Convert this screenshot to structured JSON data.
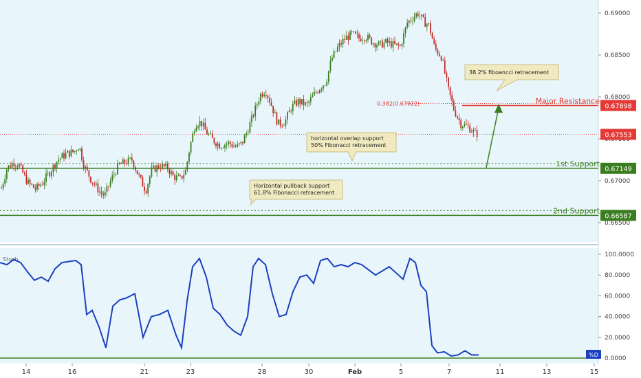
{
  "chart_data": [
    {
      "type": "candlestick",
      "y_ticks": [
        "0.69000",
        "0.68500",
        "0.68000",
        "0.67500",
        "0.67000",
        "0.66500"
      ],
      "ylim": [
        0.6618,
        0.6918
      ],
      "x_ticks": [
        "14",
        "16",
        "21",
        "23",
        "28",
        "30",
        "Feb",
        "5",
        "7",
        "11",
        "13",
        "15"
      ],
      "close_path": [
        [
          0,
          0.6685
        ],
        [
          10,
          0.6715
        ],
        [
          20,
          0.6722
        ],
        [
          28,
          0.6718
        ],
        [
          40,
          0.6698
        ],
        [
          52,
          0.669
        ],
        [
          62,
          0.6698
        ],
        [
          72,
          0.671
        ],
        [
          84,
          0.6725
        ],
        [
          96,
          0.6732
        ],
        [
          108,
          0.6735
        ],
        [
          115,
          0.6742
        ],
        [
          122,
          0.6718
        ],
        [
          132,
          0.6702
        ],
        [
          144,
          0.6688
        ],
        [
          152,
          0.6682
        ],
        [
          162,
          0.6702
        ],
        [
          172,
          0.6718
        ],
        [
          182,
          0.6722
        ],
        [
          192,
          0.6725
        ],
        [
          202,
          0.6705
        ],
        [
          212,
          0.6688
        ],
        [
          220,
          0.6712
        ],
        [
          232,
          0.6718
        ],
        [
          244,
          0.6715
        ],
        [
          252,
          0.6705
        ],
        [
          262,
          0.6702
        ],
        [
          270,
          0.6712
        ],
        [
          276,
          0.674
        ],
        [
          284,
          0.6768
        ],
        [
          292,
          0.677
        ],
        [
          300,
          0.6758
        ],
        [
          310,
          0.6748
        ],
        [
          320,
          0.6742
        ],
        [
          332,
          0.6745
        ],
        [
          344,
          0.674
        ],
        [
          352,
          0.6745
        ],
        [
          360,
          0.676
        ],
        [
          368,
          0.6778
        ],
        [
          378,
          0.6802
        ],
        [
          386,
          0.6808
        ],
        [
          394,
          0.6792
        ],
        [
          404,
          0.6768
        ],
        [
          414,
          0.677
        ],
        [
          424,
          0.6788
        ],
        [
          434,
          0.6795
        ],
        [
          446,
          0.679
        ],
        [
          456,
          0.6802
        ],
        [
          466,
          0.6812
        ],
        [
          474,
          0.6818
        ],
        [
          482,
          0.6845
        ],
        [
          492,
          0.686
        ],
        [
          502,
          0.687
        ],
        [
          512,
          0.6875
        ],
        [
          522,
          0.687
        ],
        [
          532,
          0.6872
        ],
        [
          542,
          0.6865
        ],
        [
          552,
          0.6862
        ],
        [
          562,
          0.6865
        ],
        [
          572,
          0.6862
        ],
        [
          582,
          0.686
        ],
        [
          592,
          0.6888
        ],
        [
          600,
          0.6895
        ],
        [
          608,
          0.69
        ],
        [
          616,
          0.689
        ],
        [
          624,
          0.6885
        ],
        [
          632,
          0.6858
        ],
        [
          642,
          0.6848
        ],
        [
          652,
          0.6808
        ],
        [
          660,
          0.6785
        ],
        [
          670,
          0.6768
        ],
        [
          680,
          0.6765
        ],
        [
          690,
          0.6757
        ],
        [
          698,
          0.6755
        ]
      ],
      "lines": [
        {
          "value": 0.67898,
          "label": "0.67898",
          "text": "Major Resistance",
          "color": "#e53935"
        },
        {
          "value": 0.67553,
          "label": "0.67553",
          "color": "#e53935"
        },
        {
          "value": 0.67149,
          "label": "0.67149",
          "text": "1st Support",
          "color": "#3a7d1e"
        },
        {
          "value": 0.66587,
          "label": "0.66587",
          "text": "2nd Support",
          "color": "#3a7d1e"
        }
      ],
      "fib_label": "0.382(0.67922)",
      "fib_value": 0.67922,
      "annotations": [
        "38.2% fiboancci retracement",
        "horizontal overlap support\n50% Fibonacci retracement",
        "Horizontal pullback support\n61.8% Fibonacci retracement"
      ],
      "colors": {
        "up": "#3a7d1e",
        "down": "#c62828",
        "background": "#e8f6fb",
        "support": "#3a7d1e",
        "resistance": "#e53935"
      }
    },
    {
      "type": "line",
      "indicator_label": "Stoch",
      "series_label": "%D",
      "y_ticks": [
        "100.0000",
        "80.0000",
        "60.0000",
        "40.0000",
        "20.0000",
        "0.0000"
      ],
      "ylim": [
        0,
        100
      ],
      "x": [
        0,
        10,
        20,
        30,
        40,
        50,
        60,
        70,
        80,
        90,
        100,
        110,
        118,
        126,
        134,
        144,
        154,
        164,
        174,
        184,
        196,
        208,
        220,
        232,
        244,
        256,
        264,
        272,
        280,
        290,
        300,
        310,
        320,
        330,
        340,
        350,
        360,
        368,
        376,
        386,
        396,
        406,
        416,
        426,
        436,
        446,
        456,
        466,
        476,
        486,
        496,
        506,
        516,
        526,
        536,
        546,
        556,
        566,
        576,
        586,
        596,
        604,
        612,
        620,
        628,
        636,
        646,
        656,
        666,
        676,
        686,
        696
      ],
      "values": [
        92,
        90,
        95,
        92,
        83,
        75,
        78,
        74,
        86,
        92,
        93,
        94,
        90,
        42,
        46,
        30,
        10,
        50,
        56,
        58,
        62,
        20,
        40,
        42,
        46,
        22,
        10,
        55,
        88,
        96,
        78,
        48,
        42,
        32,
        26,
        22,
        40,
        88,
        96,
        90,
        62,
        40,
        42,
        64,
        78,
        80,
        72,
        94,
        96,
        88,
        90,
        88,
        92,
        90,
        85,
        80,
        84,
        88,
        82,
        76,
        96,
        92,
        70,
        64,
        12,
        5,
        6,
        2,
        3,
        7,
        3,
        3
      ],
      "threshold": 0,
      "color": "#1a3fbf"
    }
  ]
}
